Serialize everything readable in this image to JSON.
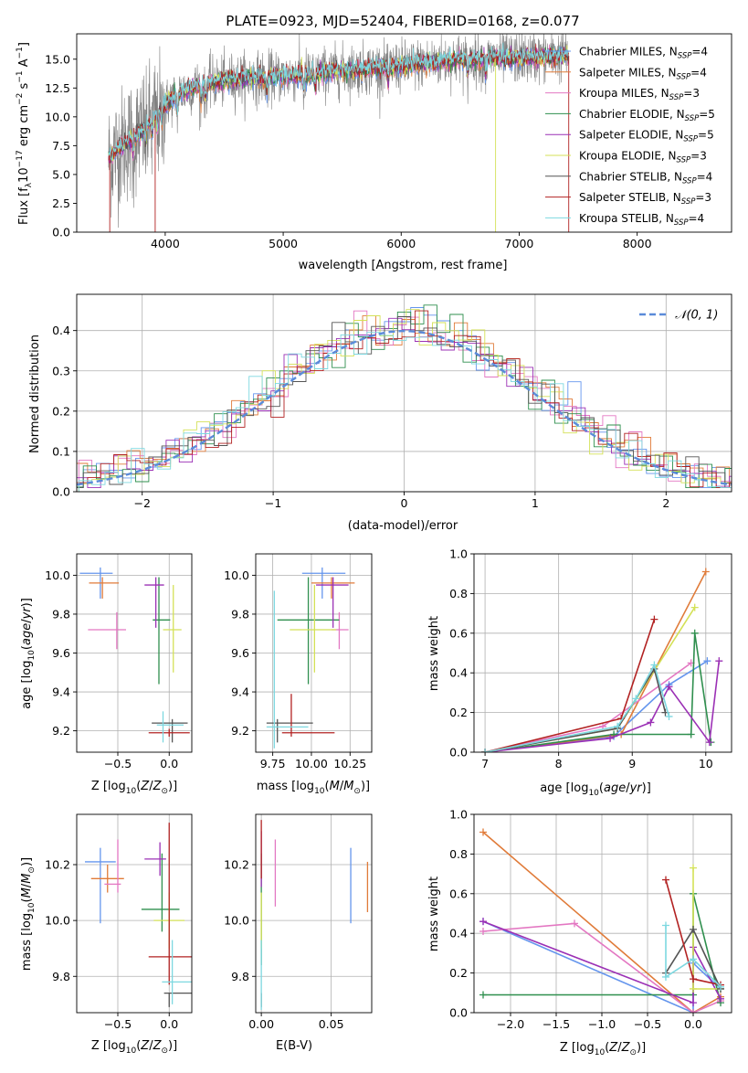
{
  "legend_labels": [
    "Chabrier MILES, N$_{SSP}$=4",
    "Salpeter MILES, N$_{SSP}$=4",
    "Kroupa MILES, N$_{SSP}$=3",
    "Chabrier ELODIE, N$_{SSP}$=5",
    "Salpeter ELODIE, N$_{SSP}$=5",
    "Kroupa ELODIE, N$_{SSP}$=3",
    "Chabrier STELIB, N$_{SSP}$=4",
    "Salpeter STELIB, N$_{SSP}$=3",
    "Kroupa STELIB, N$_{SSP}$=4"
  ],
  "colors": {
    "data": "#808080",
    "models": [
      "#6495ed",
      "#e07b39",
      "#e377c2",
      "#2f8f4e",
      "#9b30b5",
      "#d4e157",
      "#545454",
      "#b22222",
      "#7dd8e0"
    ],
    "gaussian": "#5b8bd9"
  },
  "chart_data": [
    {
      "id": "spectrum",
      "type": "line",
      "title": "PLATE=0923, MJD=52404, FIBERID=0168, z=0.077",
      "xlabel": "wavelength [Angstrom, rest frame]",
      "ylabel": "Flux [f_λ 10^{-17} erg cm^{-2} s^{-1} A^{-1}]",
      "xlim": [
        3250,
        8800
      ],
      "ylim": [
        0,
        17.2
      ],
      "xticks": [
        4000,
        5000,
        6000,
        7000,
        8000
      ],
      "yticks": [
        0.0,
        2.5,
        5.0,
        7.5,
        10.0,
        12.5,
        15.0
      ],
      "legend_position": "right",
      "series": [
        {
          "name": "Chabrier MILES, N$_{SSP}$=4"
        },
        {
          "name": "Salpeter MILES, N$_{SSP}$=4"
        },
        {
          "name": "Kroupa MILES, N$_{SSP}$=3"
        },
        {
          "name": "Chabrier ELODIE, N$_{SSP}$=5"
        },
        {
          "name": "Salpeter ELODIE, N$_{SSP}$=5"
        },
        {
          "name": "Kroupa ELODIE, N$_{SSP}$=3"
        },
        {
          "name": "Chabrier STELIB, N$_{SSP}$=4"
        },
        {
          "name": "Salpeter STELIB, N$_{SSP}$=3"
        },
        {
          "name": "Kroupa STELIB, N$_{SSP}$=4"
        }
      ],
      "continuum": {
        "x": [
          3500,
          3600,
          3800,
          3950,
          4100,
          4300,
          4600,
          5000,
          5500,
          6000,
          6500,
          7000,
          7400
        ],
        "y": [
          6.2,
          7.2,
          8.8,
          10.5,
          12.0,
          12.8,
          13.3,
          13.5,
          14.0,
          14.4,
          15.0,
          15.1,
          15.3
        ]
      }
    },
    {
      "id": "residuals",
      "type": "line",
      "xlabel": "(data-model)/error",
      "ylabel": "Normed distribution",
      "xlim": [
        -2.5,
        2.5
      ],
      "ylim": [
        0,
        0.49
      ],
      "xticks": [
        -2,
        -1,
        0,
        1,
        2
      ],
      "yticks": [
        0.0,
        0.1,
        0.2,
        0.3,
        0.4
      ],
      "grid": true,
      "legend_position": "top-right",
      "legend": "$\\mathcal{N}(0,1)$",
      "gaussian": {
        "mu": 0,
        "sigma": 1
      }
    },
    {
      "id": "age_vs_Z",
      "type": "scatter",
      "xlabel": "Z [log$_{10}$(Z/Z$_\\odot$)]",
      "ylabel": "age  [log$_{10}$(age/yr)]",
      "xlim": [
        -0.9,
        0.22
      ],
      "ylim": [
        9.09,
        10.11
      ],
      "xticks": [
        -0.5,
        0.0
      ],
      "yticks": [
        9.2,
        9.4,
        9.6,
        9.8,
        10.0
      ],
      "grid": true,
      "points": [
        {
          "x": -0.67,
          "y": 10.01,
          "xerr": [
            0.2,
            0.12
          ],
          "yerr": [
            0.13,
            0.03
          ]
        },
        {
          "x": -0.65,
          "y": 9.96,
          "xerr": [
            0.13,
            0.16
          ],
          "yerr": [
            0.08,
            0.03
          ]
        },
        {
          "x": -0.51,
          "y": 9.72,
          "xerr": [
            0.28,
            0.09
          ],
          "yerr": [
            0.1,
            0.09
          ]
        },
        {
          "x": -0.1,
          "y": 9.77,
          "xerr": [
            0.06,
            0.11
          ],
          "yerr": [
            0.33,
            0.22
          ]
        },
        {
          "x": -0.13,
          "y": 9.95,
          "xerr": [
            0.11,
            0.08
          ],
          "yerr": [
            0.22,
            0.04
          ]
        },
        {
          "x": 0.04,
          "y": 9.72,
          "xerr": [
            0.1,
            0.08
          ],
          "yerr": [
            0.22,
            0.23
          ]
        },
        {
          "x": 0.03,
          "y": 9.24,
          "xerr": [
            0.2,
            0.15
          ],
          "yerr": [
            0.1,
            0.02
          ]
        },
        {
          "x": 0.0,
          "y": 9.19,
          "xerr": [
            0.2,
            0.2
          ],
          "yerr": [
            0.02,
            0.02
          ]
        },
        {
          "x": -0.06,
          "y": 9.23,
          "xerr": [
            0.06,
            0.2
          ],
          "yerr": [
            0.09,
            0.07
          ]
        }
      ]
    },
    {
      "id": "age_vs_mass",
      "type": "scatter",
      "xlabel": "mass [log$_{10}$(M/M$_\\odot$)]",
      "ylabel": "",
      "xlim": [
        9.64,
        10.39
      ],
      "ylim": [
        9.09,
        10.11
      ],
      "xticks": [
        9.75,
        10.0,
        10.25
      ],
      "yticks": [
        9.2,
        9.4,
        9.6,
        9.8,
        10.0
      ],
      "grid": true,
      "points": [
        {
          "x": 10.07,
          "y": 10.01,
          "xerr": [
            0.13,
            0.15
          ],
          "yerr": [
            0.13,
            0.03
          ]
        },
        {
          "x": 10.13,
          "y": 9.96,
          "xerr": [
            0.13,
            0.15
          ],
          "yerr": [
            0.08,
            0.03
          ]
        },
        {
          "x": 10.18,
          "y": 9.72,
          "xerr": [
            0.05,
            0.06
          ],
          "yerr": [
            0.1,
            0.09
          ]
        },
        {
          "x": 9.98,
          "y": 9.77,
          "xerr": [
            0.2,
            0.2
          ],
          "yerr": [
            0.33,
            0.22
          ]
        },
        {
          "x": 10.14,
          "y": 9.95,
          "xerr": [
            0.11,
            0.1
          ],
          "yerr": [
            0.22,
            0.04
          ]
        },
        {
          "x": 10.02,
          "y": 9.72,
          "xerr": [
            0.16,
            0.14
          ],
          "yerr": [
            0.22,
            0.23
          ]
        },
        {
          "x": 9.78,
          "y": 9.24,
          "xerr": [
            0.07,
            0.23
          ],
          "yerr": [
            0.1,
            0.02
          ]
        },
        {
          "x": 9.87,
          "y": 9.19,
          "xerr": [
            0.06,
            0.28
          ],
          "yerr": [
            0.02,
            0.2
          ]
        },
        {
          "x": 9.76,
          "y": 9.22,
          "xerr": [
            0.05,
            0.22
          ],
          "yerr": [
            0.11,
            0.7
          ]
        }
      ]
    },
    {
      "id": "weights_vs_age",
      "type": "line",
      "xlabel": "age  [log$_{10}$(age/yr)]",
      "ylabel": "mass weight",
      "xlim": [
        6.85,
        10.35
      ],
      "ylim": [
        0,
        1
      ],
      "xticks": [
        7,
        8,
        9,
        10
      ],
      "yticks": [
        0.0,
        0.2,
        0.4,
        0.6,
        0.8,
        1.0
      ],
      "grid": true,
      "series": [
        {
          "x": [
            7.0,
            8.75,
            9.5,
            10.02
          ],
          "y": [
            0.0,
            0.08,
            0.34,
            0.46
          ]
        },
        {
          "x": [
            7.0,
            8.85,
            10.0
          ],
          "y": [
            0.0,
            0.09,
            0.91
          ]
        },
        {
          "x": [
            7.0,
            8.6,
            9.8
          ],
          "y": [
            0.0,
            0.13,
            0.45
          ]
        },
        {
          "x": [
            7.0,
            8.75,
            9.8,
            9.85,
            10.07
          ],
          "y": [
            0.0,
            0.09,
            0.09,
            0.6,
            0.05
          ]
        },
        {
          "x": [
            7.0,
            8.7,
            9.25,
            9.5,
            10.05,
            10.18
          ],
          "y": [
            0.0,
            0.07,
            0.15,
            0.33,
            0.05,
            0.46
          ]
        },
        {
          "x": [
            7.0,
            8.8,
            9.85
          ],
          "y": [
            0.0,
            0.12,
            0.73
          ]
        },
        {
          "x": [
            7.0,
            8.8,
            9.3,
            9.45
          ],
          "y": [
            0.0,
            0.12,
            0.42,
            0.2
          ]
        },
        {
          "x": [
            7.0,
            8.85,
            9.3
          ],
          "y": [
            0.0,
            0.17,
            0.67
          ]
        },
        {
          "x": [
            7.0,
            8.8,
            9.05,
            9.3,
            9.5
          ],
          "y": [
            0.0,
            0.13,
            0.27,
            0.44,
            0.18
          ]
        }
      ]
    },
    {
      "id": "mass_vs_Z",
      "type": "scatter",
      "xlabel": "Z [log$_{10}$(Z/Z$_\\odot$)]",
      "ylabel": "mass [log$_{10}$(M/M$_\\odot$)]",
      "xlim": [
        -0.9,
        0.22
      ],
      "ylim": [
        9.67,
        10.38
      ],
      "xticks": [
        -0.5,
        0.0
      ],
      "yticks": [
        9.8,
        10.0,
        10.2
      ],
      "grid": true,
      "points": [
        {
          "x": -0.67,
          "y": 10.21,
          "xerr": [
            0.15,
            0.15
          ],
          "yerr": [
            0.22,
            0.05
          ]
        },
        {
          "x": -0.6,
          "y": 10.15,
          "xerr": [
            0.16,
            0.16
          ],
          "yerr": [
            0.05,
            0.05
          ]
        },
        {
          "x": -0.5,
          "y": 10.13,
          "xerr": [
            0.13,
            0.03
          ],
          "yerr": [
            0.03,
            0.16
          ]
        },
        {
          "x": -0.07,
          "y": 10.04,
          "xerr": [
            0.2,
            0.17
          ],
          "yerr": [
            0.08,
            0.2
          ]
        },
        {
          "x": -0.09,
          "y": 10.22,
          "xerr": [
            0.15,
            0.06
          ],
          "yerr": [
            0.06,
            0.06
          ]
        },
        {
          "x": 0.0,
          "y": 10.0,
          "xerr": [
            0.15,
            0.15
          ],
          "yerr": [
            0.1,
            0.1
          ]
        },
        {
          "x": 0.0,
          "y": 9.74,
          "xerr": [
            0.05,
            0.22
          ],
          "yerr": [
            0.05,
            0.0
          ]
        },
        {
          "x": 0.0,
          "y": 9.87,
          "xerr": [
            0.2,
            0.22
          ],
          "yerr": [
            0.1,
            0.48
          ]
        },
        {
          "x": 0.03,
          "y": 9.78,
          "xerr": [
            0.1,
            0.23
          ],
          "yerr": [
            0.08,
            0.15
          ]
        }
      ]
    },
    {
      "id": "mass_vs_ebv",
      "type": "scatter",
      "xlabel": "E(B-V)",
      "ylabel": "",
      "xlim": [
        -0.004,
        0.079
      ],
      "ylim": [
        9.67,
        10.38
      ],
      "xticks": [
        0.0,
        0.05
      ],
      "yticks": [
        9.8,
        10.0,
        10.2
      ],
      "grid": true,
      "points": [
        {
          "x": 0.064,
          "y": 10.21,
          "xerr": [
            0,
            0
          ],
          "yerr": [
            0.22,
            0.05
          ]
        },
        {
          "x": 0.076,
          "y": 10.15,
          "xerr": [
            0,
            0
          ],
          "yerr": [
            0.12,
            0.06
          ]
        },
        {
          "x": 0.01,
          "y": 10.13,
          "xerr": [
            0,
            0
          ],
          "yerr": [
            0.08,
            0.16
          ]
        },
        {
          "x": 0.0,
          "y": 10.04,
          "xerr": [
            0,
            0
          ],
          "yerr": [
            0.2,
            0.2
          ]
        },
        {
          "x": 0.0,
          "y": 10.22,
          "xerr": [
            0,
            0
          ],
          "yerr": [
            0.1,
            0.1
          ]
        },
        {
          "x": 0.0,
          "y": 10.0,
          "xerr": [
            0,
            0
          ],
          "yerr": [
            0.1,
            0.1
          ]
        },
        {
          "x": 0.0,
          "y": 9.74,
          "xerr": [
            0,
            0
          ],
          "yerr": [
            0.05,
            0.0
          ]
        },
        {
          "x": 0.0,
          "y": 10.25,
          "xerr": [
            0,
            0
          ],
          "yerr": [
            0.1,
            0.11
          ]
        },
        {
          "x": 0.0,
          "y": 9.78,
          "xerr": [
            0,
            0
          ],
          "yerr": [
            0.1,
            0.15
          ]
        }
      ]
    },
    {
      "id": "weights_vs_Z",
      "type": "line",
      "xlabel": "Z [log$_{10}$(Z/Z$_\\odot$)]",
      "ylabel": "mass weight",
      "xlim": [
        -2.4,
        0.42
      ],
      "ylim": [
        0,
        1
      ],
      "xticks": [
        -2.0,
        -1.5,
        -1.0,
        -0.5,
        0.0
      ],
      "yticks": [
        0.0,
        0.2,
        0.4,
        0.6,
        0.8,
        1.0
      ],
      "grid": true,
      "series": [
        {
          "x": [
            -2.3,
            0.0,
            0.0,
            0.3
          ],
          "y": [
            0.46,
            0.0,
            0.25,
            0.12
          ]
        },
        {
          "x": [
            -2.3,
            0.0,
            0.3
          ],
          "y": [
            0.91,
            0.0,
            0.08
          ]
        },
        {
          "x": [
            -2.3,
            -1.3,
            0.0,
            0.3
          ],
          "y": [
            0.41,
            0.45,
            0.0,
            0.06
          ]
        },
        {
          "x": [
            -2.3,
            0.0,
            0.0,
            0.3
          ],
          "y": [
            0.09,
            0.09,
            0.6,
            0.05
          ]
        },
        {
          "x": [
            -2.3,
            0.0,
            0.0,
            0.3
          ],
          "y": [
            0.46,
            0.05,
            0.33,
            0.07
          ]
        },
        {
          "x": [
            0.0,
            0.0,
            0.3
          ],
          "y": [
            0.73,
            0.12,
            0.12
          ]
        },
        {
          "x": [
            -0.3,
            0.0,
            0.3
          ],
          "y": [
            0.2,
            0.42,
            0.12
          ]
        },
        {
          "x": [
            -0.3,
            0.0,
            0.3
          ],
          "y": [
            0.67,
            0.17,
            0.14
          ]
        },
        {
          "x": [
            -0.3,
            -0.3,
            0.0,
            0.3
          ],
          "y": [
            0.44,
            0.18,
            0.27,
            0.13
          ]
        }
      ]
    }
  ]
}
